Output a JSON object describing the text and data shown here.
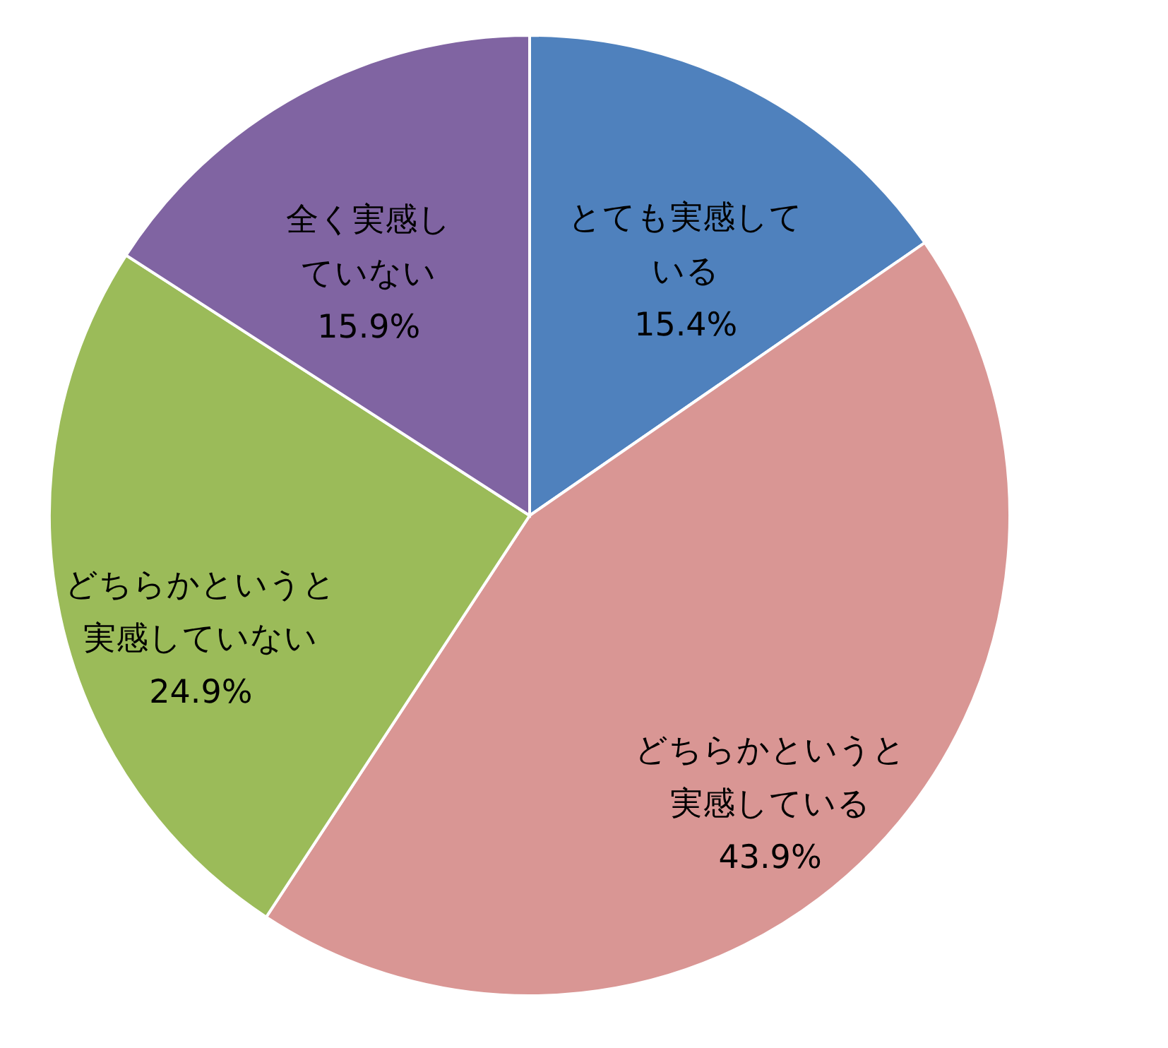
{
  "chart_data": {
    "type": "pie",
    "categories": [
      "とても実感している",
      "どちらかというと実感している",
      "どちらかというと実感していない",
      "全く実感していない"
    ],
    "values": [
      15.4,
      43.9,
      24.9,
      15.9
    ],
    "colors": [
      "#4f81bd",
      "#d99694",
      "#9bbb59",
      "#8064a2"
    ],
    "value_labels": [
      "15.4%",
      "43.9%",
      "24.9%",
      "15.9%"
    ]
  }
}
